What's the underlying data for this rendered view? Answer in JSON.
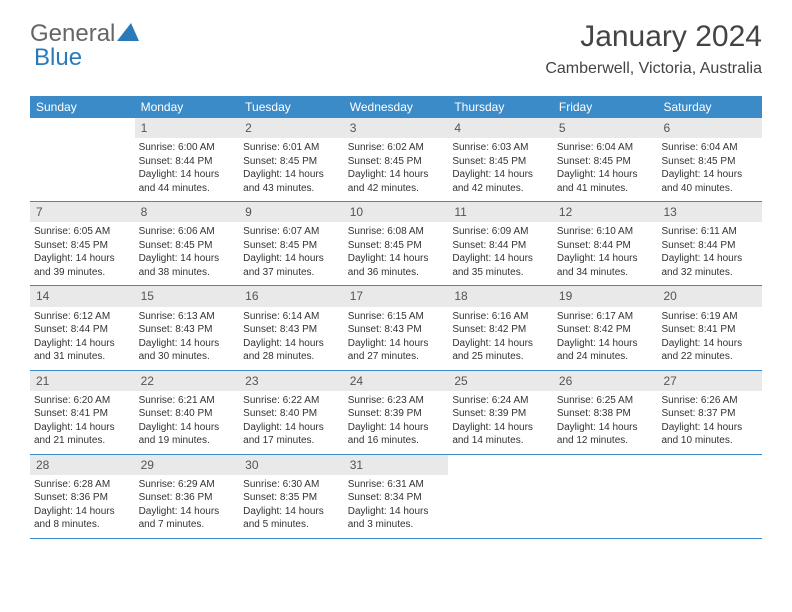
{
  "brand": {
    "text_a": "General",
    "text_b": "Blue"
  },
  "colors": {
    "header_bg": "#3b8bc9",
    "header_text": "#ffffff",
    "daynum_bg": "#e9e9e9",
    "daynum_text": "#555555",
    "body_text": "#333333",
    "divider": "#3b8bc9",
    "brand_blue": "#2a7ab9",
    "brand_gray": "#666666",
    "page_bg": "#ffffff"
  },
  "title": "January 2024",
  "location": "Camberwell, Victoria, Australia",
  "day_names": [
    "Sunday",
    "Monday",
    "Tuesday",
    "Wednesday",
    "Thursday",
    "Friday",
    "Saturday"
  ],
  "weeks": [
    [
      {
        "n": "",
        "sun": "",
        "set": "",
        "day": ""
      },
      {
        "n": "1",
        "sun": "Sunrise: 6:00 AM",
        "set": "Sunset: 8:44 PM",
        "day": "Daylight: 14 hours and 44 minutes."
      },
      {
        "n": "2",
        "sun": "Sunrise: 6:01 AM",
        "set": "Sunset: 8:45 PM",
        "day": "Daylight: 14 hours and 43 minutes."
      },
      {
        "n": "3",
        "sun": "Sunrise: 6:02 AM",
        "set": "Sunset: 8:45 PM",
        "day": "Daylight: 14 hours and 42 minutes."
      },
      {
        "n": "4",
        "sun": "Sunrise: 6:03 AM",
        "set": "Sunset: 8:45 PM",
        "day": "Daylight: 14 hours and 42 minutes."
      },
      {
        "n": "5",
        "sun": "Sunrise: 6:04 AM",
        "set": "Sunset: 8:45 PM",
        "day": "Daylight: 14 hours and 41 minutes."
      },
      {
        "n": "6",
        "sun": "Sunrise: 6:04 AM",
        "set": "Sunset: 8:45 PM",
        "day": "Daylight: 14 hours and 40 minutes."
      }
    ],
    [
      {
        "n": "7",
        "sun": "Sunrise: 6:05 AM",
        "set": "Sunset: 8:45 PM",
        "day": "Daylight: 14 hours and 39 minutes."
      },
      {
        "n": "8",
        "sun": "Sunrise: 6:06 AM",
        "set": "Sunset: 8:45 PM",
        "day": "Daylight: 14 hours and 38 minutes."
      },
      {
        "n": "9",
        "sun": "Sunrise: 6:07 AM",
        "set": "Sunset: 8:45 PM",
        "day": "Daylight: 14 hours and 37 minutes."
      },
      {
        "n": "10",
        "sun": "Sunrise: 6:08 AM",
        "set": "Sunset: 8:45 PM",
        "day": "Daylight: 14 hours and 36 minutes."
      },
      {
        "n": "11",
        "sun": "Sunrise: 6:09 AM",
        "set": "Sunset: 8:44 PM",
        "day": "Daylight: 14 hours and 35 minutes."
      },
      {
        "n": "12",
        "sun": "Sunrise: 6:10 AM",
        "set": "Sunset: 8:44 PM",
        "day": "Daylight: 14 hours and 34 minutes."
      },
      {
        "n": "13",
        "sun": "Sunrise: 6:11 AM",
        "set": "Sunset: 8:44 PM",
        "day": "Daylight: 14 hours and 32 minutes."
      }
    ],
    [
      {
        "n": "14",
        "sun": "Sunrise: 6:12 AM",
        "set": "Sunset: 8:44 PM",
        "day": "Daylight: 14 hours and 31 minutes."
      },
      {
        "n": "15",
        "sun": "Sunrise: 6:13 AM",
        "set": "Sunset: 8:43 PM",
        "day": "Daylight: 14 hours and 30 minutes."
      },
      {
        "n": "16",
        "sun": "Sunrise: 6:14 AM",
        "set": "Sunset: 8:43 PM",
        "day": "Daylight: 14 hours and 28 minutes."
      },
      {
        "n": "17",
        "sun": "Sunrise: 6:15 AM",
        "set": "Sunset: 8:43 PM",
        "day": "Daylight: 14 hours and 27 minutes."
      },
      {
        "n": "18",
        "sun": "Sunrise: 6:16 AM",
        "set": "Sunset: 8:42 PM",
        "day": "Daylight: 14 hours and 25 minutes."
      },
      {
        "n": "19",
        "sun": "Sunrise: 6:17 AM",
        "set": "Sunset: 8:42 PM",
        "day": "Daylight: 14 hours and 24 minutes."
      },
      {
        "n": "20",
        "sun": "Sunrise: 6:19 AM",
        "set": "Sunset: 8:41 PM",
        "day": "Daylight: 14 hours and 22 minutes."
      }
    ],
    [
      {
        "n": "21",
        "sun": "Sunrise: 6:20 AM",
        "set": "Sunset: 8:41 PM",
        "day": "Daylight: 14 hours and 21 minutes."
      },
      {
        "n": "22",
        "sun": "Sunrise: 6:21 AM",
        "set": "Sunset: 8:40 PM",
        "day": "Daylight: 14 hours and 19 minutes."
      },
      {
        "n": "23",
        "sun": "Sunrise: 6:22 AM",
        "set": "Sunset: 8:40 PM",
        "day": "Daylight: 14 hours and 17 minutes."
      },
      {
        "n": "24",
        "sun": "Sunrise: 6:23 AM",
        "set": "Sunset: 8:39 PM",
        "day": "Daylight: 14 hours and 16 minutes."
      },
      {
        "n": "25",
        "sun": "Sunrise: 6:24 AM",
        "set": "Sunset: 8:39 PM",
        "day": "Daylight: 14 hours and 14 minutes."
      },
      {
        "n": "26",
        "sun": "Sunrise: 6:25 AM",
        "set": "Sunset: 8:38 PM",
        "day": "Daylight: 14 hours and 12 minutes."
      },
      {
        "n": "27",
        "sun": "Sunrise: 6:26 AM",
        "set": "Sunset: 8:37 PM",
        "day": "Daylight: 14 hours and 10 minutes."
      }
    ],
    [
      {
        "n": "28",
        "sun": "Sunrise: 6:28 AM",
        "set": "Sunset: 8:36 PM",
        "day": "Daylight: 14 hours and 8 minutes."
      },
      {
        "n": "29",
        "sun": "Sunrise: 6:29 AM",
        "set": "Sunset: 8:36 PM",
        "day": "Daylight: 14 hours and 7 minutes."
      },
      {
        "n": "30",
        "sun": "Sunrise: 6:30 AM",
        "set": "Sunset: 8:35 PM",
        "day": "Daylight: 14 hours and 5 minutes."
      },
      {
        "n": "31",
        "sun": "Sunrise: 6:31 AM",
        "set": "Sunset: 8:34 PM",
        "day": "Daylight: 14 hours and 3 minutes."
      },
      {
        "n": "",
        "sun": "",
        "set": "",
        "day": ""
      },
      {
        "n": "",
        "sun": "",
        "set": "",
        "day": ""
      },
      {
        "n": "",
        "sun": "",
        "set": "",
        "day": ""
      }
    ]
  ]
}
